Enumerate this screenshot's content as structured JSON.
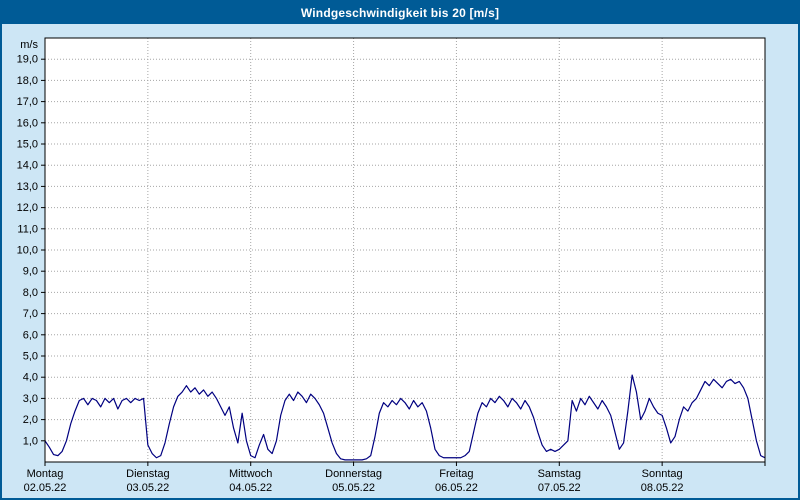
{
  "title_bar": {
    "title": "Windgeschwindigkeit bis 20 [m/s]"
  },
  "colors": {
    "titlebar_bg": "#005b96",
    "titlebar_text": "#ffffff",
    "window_bg": "#cde6f5",
    "plot_bg": "#ffffff",
    "line": "#000080",
    "grid": "#a6a6a6",
    "axis": "#000000",
    "text": "#000000"
  },
  "chart_data": {
    "type": "line",
    "title": "Windgeschwindigkeit bis 20 [m/s]",
    "ylabel": "m/s",
    "ylim": [
      0,
      20
    ],
    "xlim_hours": [
      0,
      168
    ],
    "grid": true,
    "legend": "none",
    "yticks": [
      {
        "v": 19,
        "label": "19,0"
      },
      {
        "v": 18,
        "label": "18,0"
      },
      {
        "v": 17,
        "label": "17,0"
      },
      {
        "v": 16,
        "label": "16,0"
      },
      {
        "v": 15,
        "label": "15,0"
      },
      {
        "v": 14,
        "label": "14,0"
      },
      {
        "v": 13,
        "label": "13,0"
      },
      {
        "v": 12,
        "label": "12,0"
      },
      {
        "v": 11,
        "label": "11,0"
      },
      {
        "v": 10,
        "label": "10,0"
      },
      {
        "v": 9,
        "label": "9,0"
      },
      {
        "v": 8,
        "label": "8,0"
      },
      {
        "v": 7,
        "label": "7,0"
      },
      {
        "v": 6,
        "label": "6,0"
      },
      {
        "v": 5,
        "label": "5,0"
      },
      {
        "v": 4,
        "label": "4,0"
      },
      {
        "v": 3,
        "label": "3,0"
      },
      {
        "v": 2,
        "label": "2,0"
      },
      {
        "v": 1,
        "label": "1,0"
      }
    ],
    "days": [
      {
        "name": "Montag",
        "date": "02.05.22"
      },
      {
        "name": "Dienstag",
        "date": "03.05.22"
      },
      {
        "name": "Mittwoch",
        "date": "04.05.22"
      },
      {
        "name": "Donnerstag",
        "date": "05.05.22"
      },
      {
        "name": "Freitag",
        "date": "06.05.22"
      },
      {
        "name": "Samstag",
        "date": "07.05.22"
      },
      {
        "name": "Sonntag",
        "date": "08.05.22"
      }
    ],
    "series": [
      {
        "name": "Windgeschwindigkeit",
        "unit": "m/s",
        "x_step_hours": 1,
        "values": [
          1.0,
          0.7,
          0.35,
          0.3,
          0.5,
          1.0,
          1.8,
          2.4,
          2.9,
          3.0,
          2.7,
          3.0,
          2.9,
          2.6,
          3.0,
          2.8,
          3.0,
          2.5,
          2.9,
          3.0,
          2.8,
          3.0,
          2.9,
          3.0,
          0.8,
          0.4,
          0.2,
          0.3,
          0.9,
          1.8,
          2.6,
          3.1,
          3.3,
          3.6,
          3.3,
          3.5,
          3.2,
          3.4,
          3.1,
          3.3,
          3.0,
          2.6,
          2.2,
          2.6,
          1.6,
          0.9,
          2.3,
          1.0,
          0.3,
          0.2,
          0.8,
          1.3,
          0.6,
          0.4,
          1.0,
          2.2,
          2.9,
          3.2,
          2.9,
          3.3,
          3.1,
          2.8,
          3.2,
          3.0,
          2.7,
          2.3,
          1.6,
          0.9,
          0.4,
          0.15,
          0.1,
          0.1,
          0.1,
          0.1,
          0.1,
          0.15,
          0.3,
          1.2,
          2.3,
          2.8,
          2.6,
          2.9,
          2.7,
          3.0,
          2.8,
          2.5,
          2.9,
          2.6,
          2.8,
          2.4,
          1.6,
          0.6,
          0.3,
          0.2,
          0.2,
          0.2,
          0.2,
          0.2,
          0.3,
          0.5,
          1.4,
          2.3,
          2.8,
          2.6,
          3.0,
          2.8,
          3.1,
          2.9,
          2.6,
          3.0,
          2.8,
          2.5,
          2.9,
          2.6,
          2.1,
          1.4,
          0.8,
          0.5,
          0.6,
          0.5,
          0.6,
          0.8,
          1.0,
          2.9,
          2.4,
          3.0,
          2.7,
          3.1,
          2.8,
          2.5,
          2.9,
          2.6,
          2.2,
          1.4,
          0.6,
          0.9,
          2.4,
          4.1,
          3.3,
          2.0,
          2.4,
          3.0,
          2.6,
          2.3,
          2.2,
          1.6,
          0.9,
          1.2,
          2.0,
          2.6,
          2.4,
          2.8,
          3.0,
          3.4,
          3.8,
          3.6,
          3.9,
          3.7,
          3.5,
          3.8,
          3.9,
          3.7,
          3.8,
          3.5,
          3.0,
          2.0,
          1.0,
          0.3,
          0.2
        ]
      }
    ]
  }
}
